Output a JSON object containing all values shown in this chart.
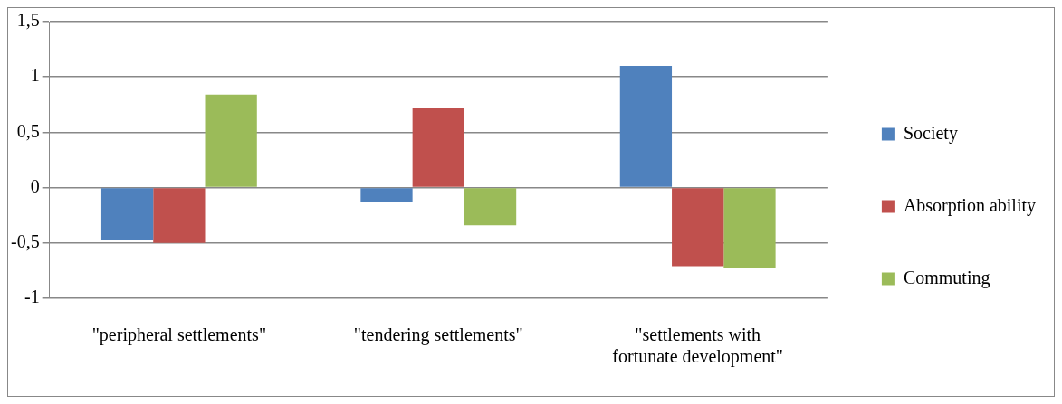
{
  "chart_data": {
    "type": "bar",
    "categories": [
      "\"peripheral settlements\"",
      "\"tendering settlements\"",
      "\"settlements with fortunate development\""
    ],
    "series": [
      {
        "name": "Society",
        "color": "#4f81bd",
        "values": [
          -0.47,
          -0.13,
          1.1
        ]
      },
      {
        "name": "Absorption ability",
        "color": "#c0504d",
        "values": [
          -0.5,
          0.72,
          -0.71
        ]
      },
      {
        "name": "Commuting",
        "color": "#9bbb59",
        "values": [
          0.84,
          -0.34,
          -0.73
        ]
      }
    ],
    "ylim": [
      -1,
      1.5
    ],
    "yticks": [
      {
        "value": -1,
        "label": "-1"
      },
      {
        "value": -0.5,
        "label": "-0,5"
      },
      {
        "value": 0,
        "label": "0"
      },
      {
        "value": 0.5,
        "label": "0,5"
      },
      {
        "value": 1,
        "label": "1"
      },
      {
        "value": 1.5,
        "label": "1,5"
      }
    ],
    "grid": "y",
    "legend": "right"
  }
}
